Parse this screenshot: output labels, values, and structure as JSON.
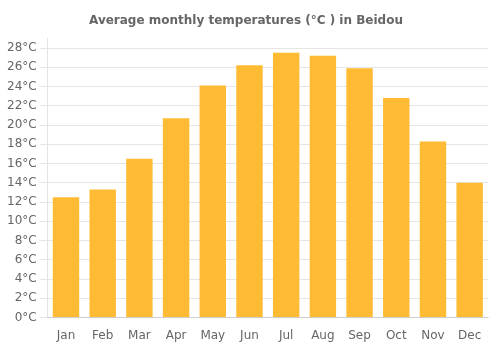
{
  "chart_data": {
    "type": "bar",
    "title": "Average monthly temperatures (°C ) in Beidou",
    "categories": [
      "Jan",
      "Feb",
      "Mar",
      "Apr",
      "May",
      "Jun",
      "Jul",
      "Aug",
      "Sep",
      "Oct",
      "Nov",
      "Dec"
    ],
    "values": [
      12.5,
      13.3,
      16.5,
      20.7,
      24.1,
      26.2,
      27.5,
      27.2,
      25.9,
      22.8,
      18.3,
      14.0
    ],
    "color": "#FFBB33",
    "ylim": [
      0,
      29
    ],
    "yticks": [
      {
        "value": 0,
        "label": "0°C"
      },
      {
        "value": 2,
        "label": "2°C"
      },
      {
        "value": 4,
        "label": "4°C"
      },
      {
        "value": 6,
        "label": "6°C"
      },
      {
        "value": 8,
        "label": "8°C"
      },
      {
        "value": 10,
        "label": "10°C"
      },
      {
        "value": 12,
        "label": "12°C"
      },
      {
        "value": 14,
        "label": "14°C"
      },
      {
        "value": 16,
        "label": "16°C"
      },
      {
        "value": 18,
        "label": "18°C"
      },
      {
        "value": 20,
        "label": "20°C"
      },
      {
        "value": 22,
        "label": "22°C"
      },
      {
        "value": 24,
        "label": "24°C"
      },
      {
        "value": 26,
        "label": "26°C"
      },
      {
        "value": 28,
        "label": "28°C"
      }
    ],
    "grid": true
  }
}
